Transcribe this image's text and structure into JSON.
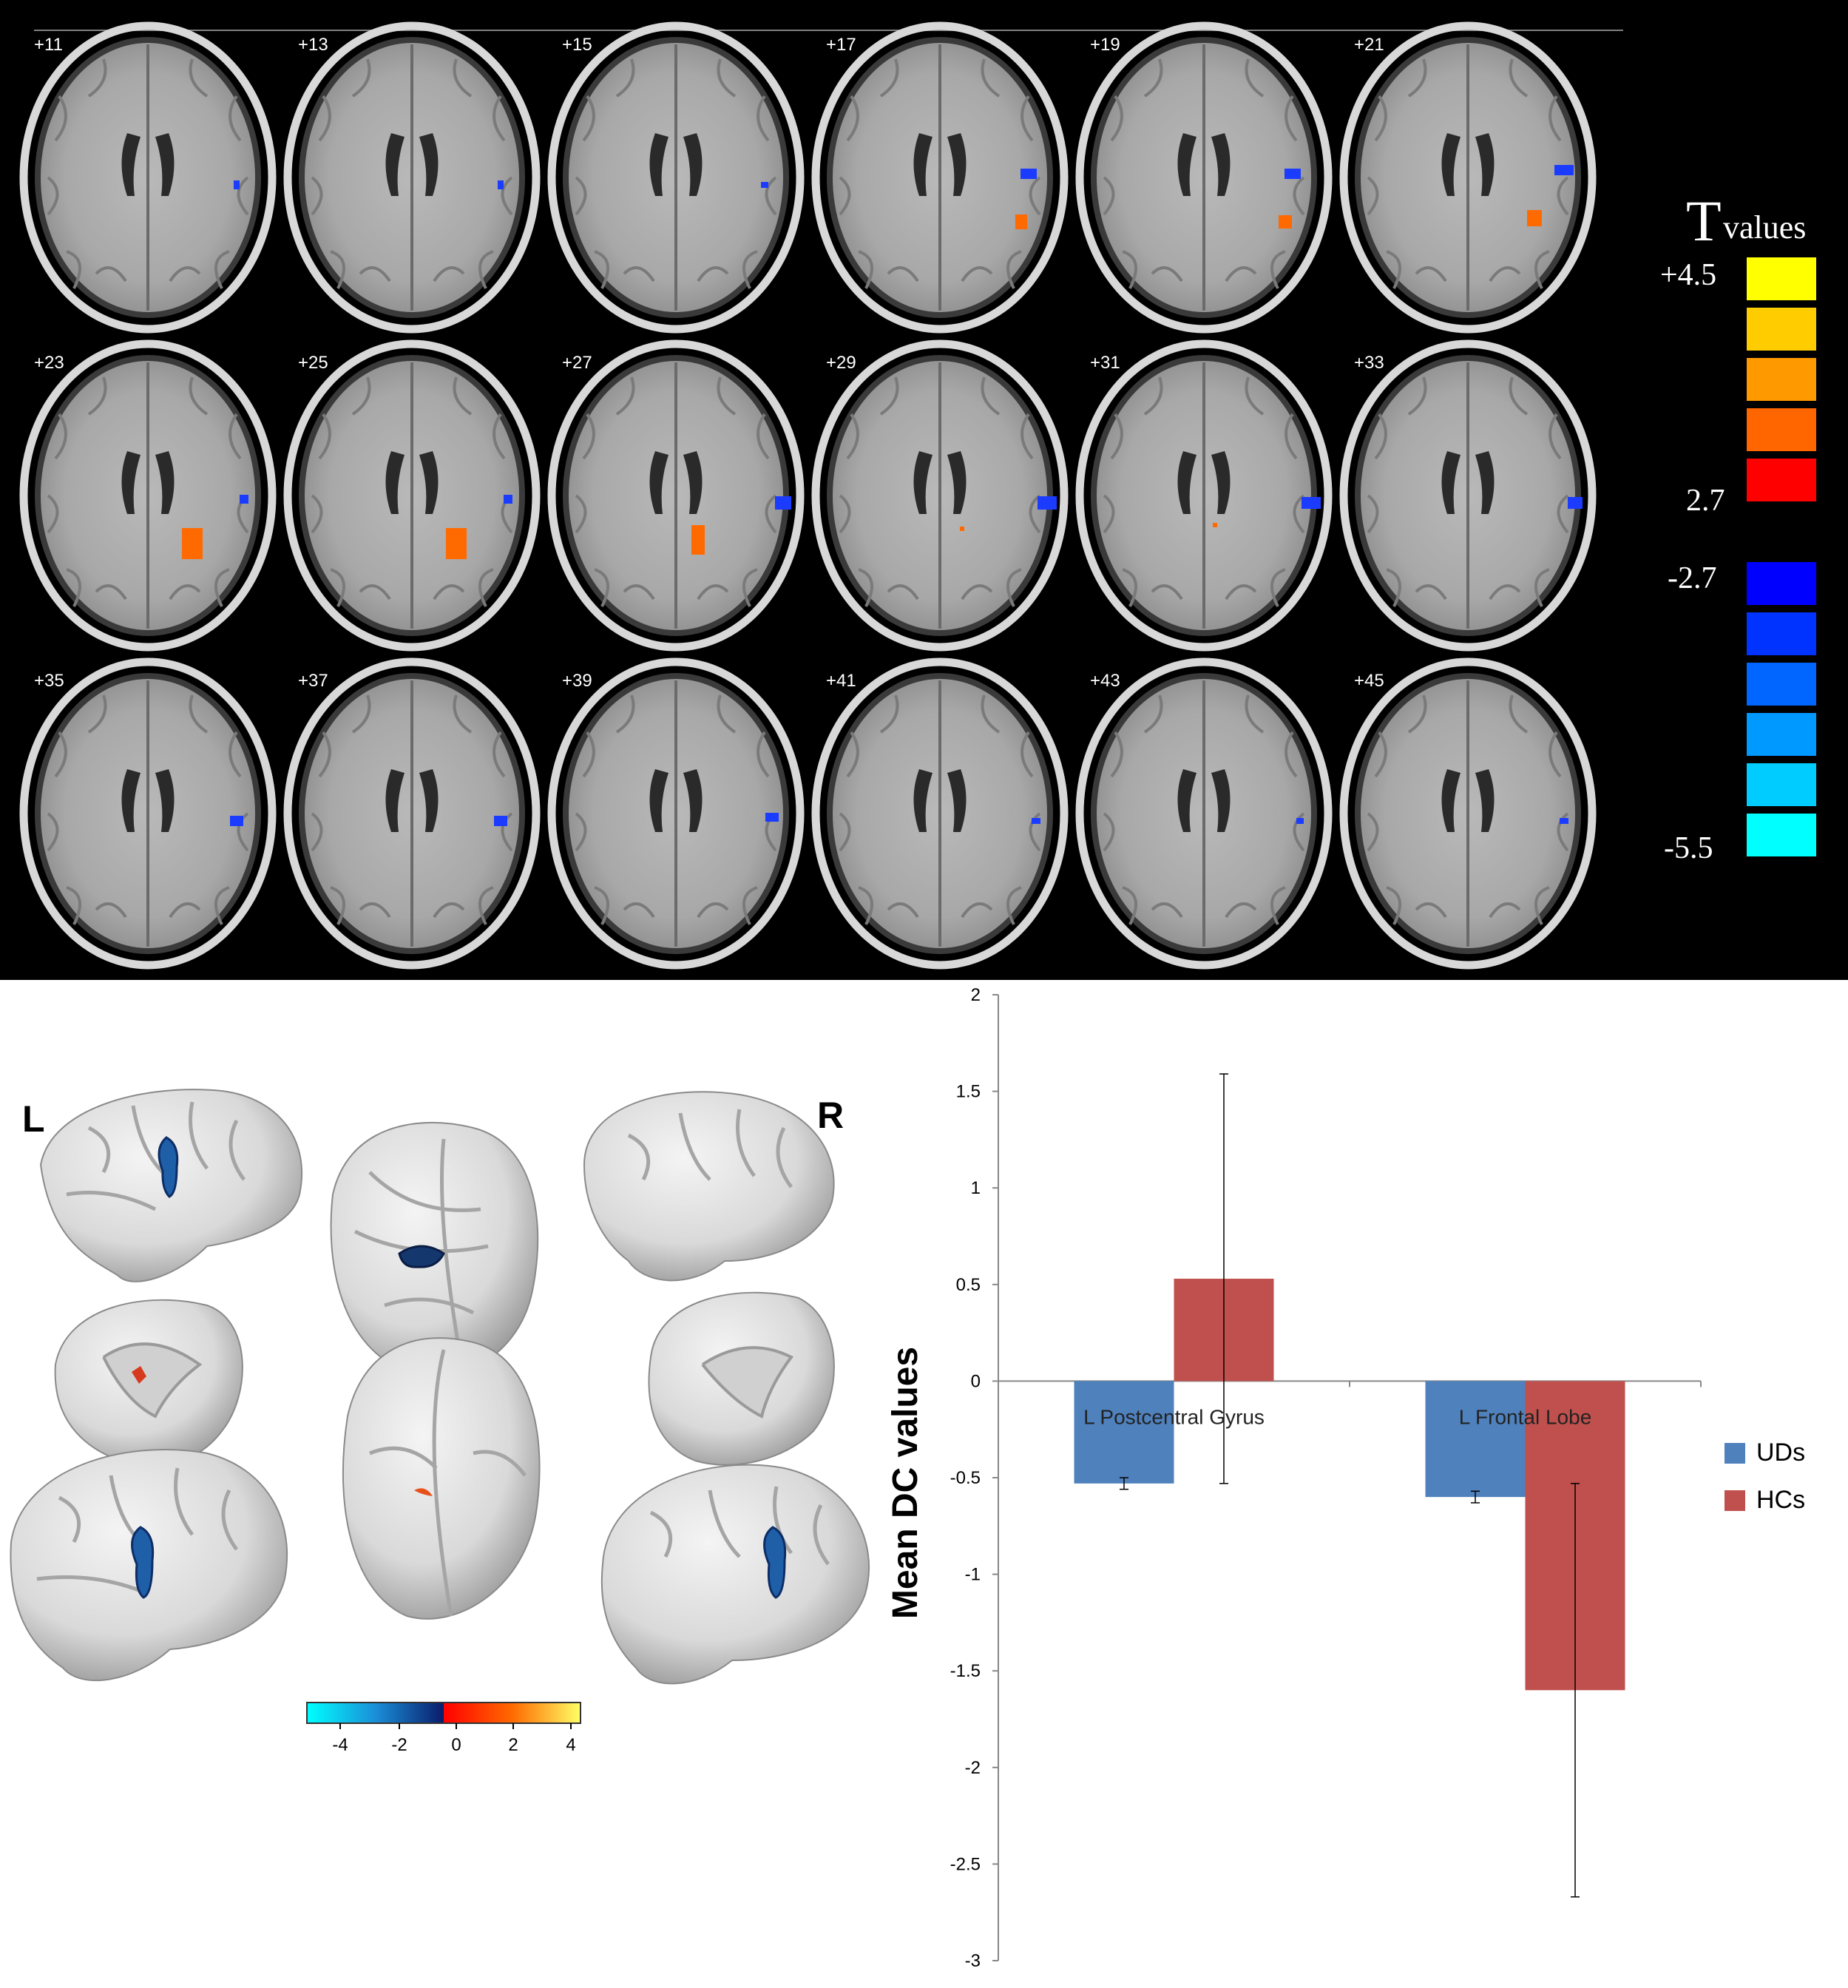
{
  "slices": {
    "labels": [
      "+11",
      "+13",
      "+15",
      "+17",
      "+19",
      "+21",
      "+23",
      "+25",
      "+27",
      "+29",
      "+31",
      "+33",
      "+35",
      "+37",
      "+39",
      "+41",
      "+43",
      "+45"
    ]
  },
  "tvalues_legend": {
    "title_T": "T",
    "title_values": "values",
    "pos_max": "+4.5",
    "pos_min": "2.7",
    "neg_min": "-2.7",
    "neg_max": "-5.5",
    "pos_colors": [
      "#ffff00",
      "#ffcc00",
      "#ff9900",
      "#ff6600",
      "#ff0000"
    ],
    "neg_colors": [
      "#0000ff",
      "#0033ff",
      "#0066ff",
      "#0099ff",
      "#00ccff",
      "#00ffff"
    ]
  },
  "surface": {
    "left_label": "L",
    "right_label": "R",
    "colorbar_ticks": [
      "-4",
      "-2",
      "0",
      "2",
      "4"
    ]
  },
  "chart_data": {
    "type": "bar",
    "categories": [
      "L Postcentral Gyrus",
      "L Frontal Lobe"
    ],
    "series": [
      {
        "name": "UDs",
        "values": [
          -0.53,
          -0.6
        ],
        "error": [
          0.03,
          0.03
        ],
        "color": "#4f81bd"
      },
      {
        "name": "HCs",
        "values": [
          0.53,
          -1.6
        ],
        "error": [
          1.06,
          1.07
        ],
        "color": "#c0504d"
      }
    ],
    "ylabel": "Mean DC values",
    "xlabel": "",
    "ylim": [
      -3,
      2
    ],
    "yticks": [
      "2",
      "1.5",
      "1",
      "0.5",
      "0",
      "-0.5",
      "-1",
      "-1.5",
      "-2",
      "-2.5",
      "-3"
    ],
    "legend_position": "right"
  }
}
